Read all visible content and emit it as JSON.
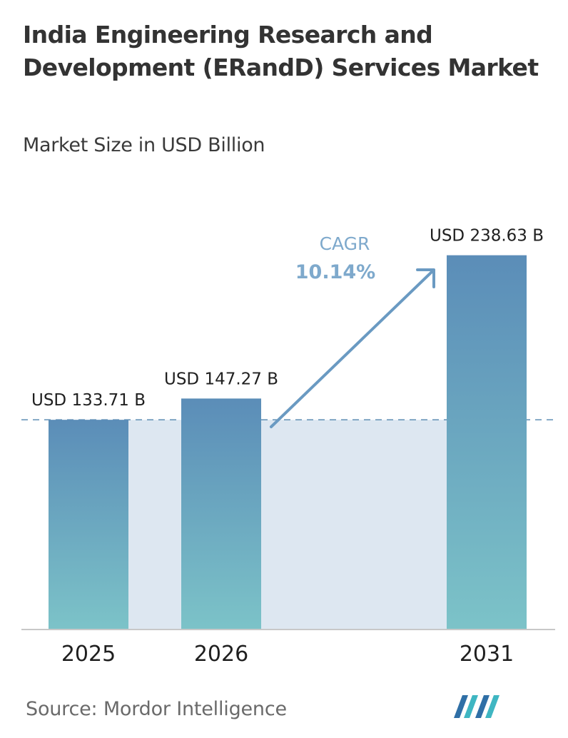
{
  "header": {
    "title": "India Engineering Research and Development (ERandD) Services Market",
    "subtitle": "Market Size in USD Billion"
  },
  "chart_data": {
    "type": "bar",
    "categories": [
      "2025",
      "2026",
      "2031"
    ],
    "values": [
      133.71,
      147.27,
      238.63
    ],
    "value_labels": [
      "USD 133.71 B",
      "USD 147.27 B",
      "USD 238.63 B"
    ],
    "title": "India Engineering Research and Development (ERandD) Services Market",
    "ylabel": "Market Size in USD Billion",
    "ylim": [
      0,
      250
    ],
    "grid": false,
    "annotation": {
      "label": "CAGR",
      "value": "10.14%"
    },
    "reference_line": 133.71
  },
  "footer": {
    "source": "Source: Mordor Intelligence"
  },
  "colors": {
    "bar_top": "#5b8db8",
    "bar_bottom": "#7cc3c8",
    "band": "#dde7f1",
    "arrow": "#6a9ac2",
    "cagr_text": "#7ea9cc"
  },
  "logo": {
    "icon": "mordor-intelligence-logo"
  }
}
